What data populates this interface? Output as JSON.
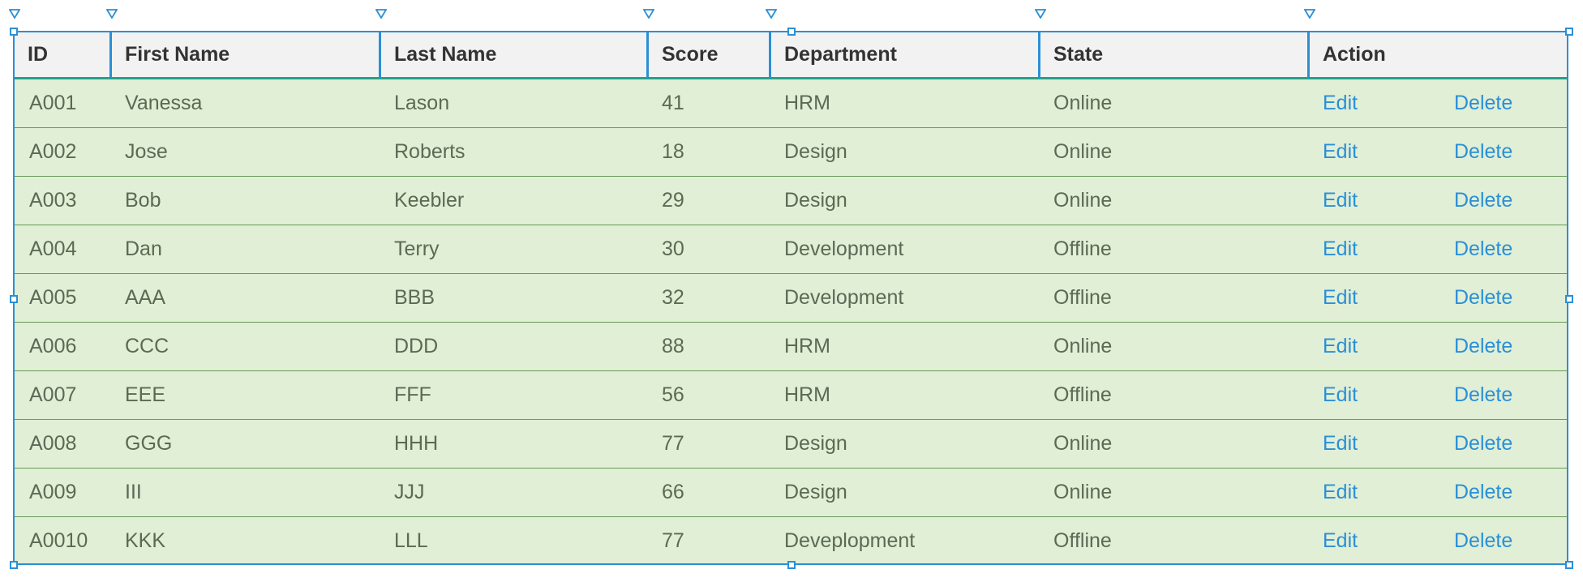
{
  "table": {
    "columns": [
      "ID",
      "First Name",
      "Last Name",
      "Score",
      "Department",
      "State",
      "Action"
    ],
    "rows": [
      {
        "id": "A001",
        "first": "Vanessa",
        "last": "Lason",
        "score": "41",
        "dept": "HRM",
        "state": "Online",
        "edit": "Edit",
        "delete": "Delete"
      },
      {
        "id": "A002",
        "first": "Jose",
        "last": "Roberts",
        "score": "18",
        "dept": "Design",
        "state": "Online",
        "edit": "Edit",
        "delete": "Delete"
      },
      {
        "id": "A003",
        "first": "Bob",
        "last": "Keebler",
        "score": "29",
        "dept": "Design",
        "state": "Online",
        "edit": "Edit",
        "delete": "Delete"
      },
      {
        "id": "A004",
        "first": "Dan",
        "last": "Terry",
        "score": "30",
        "dept": "Development",
        "state": "Offline",
        "edit": "Edit",
        "delete": "Delete"
      },
      {
        "id": "A005",
        "first": "AAA",
        "last": "BBB",
        "score": "32",
        "dept": "Development",
        "state": "Offline",
        "edit": "Edit",
        "delete": "Delete"
      },
      {
        "id": "A006",
        "first": "CCC",
        "last": "DDD",
        "score": "88",
        "dept": "HRM",
        "state": "Online",
        "edit": "Edit",
        "delete": "Delete"
      },
      {
        "id": "A007",
        "first": "EEE",
        "last": "FFF",
        "score": "56",
        "dept": "HRM",
        "state": "Offline",
        "edit": "Edit",
        "delete": "Delete"
      },
      {
        "id": "A008",
        "first": "GGG",
        "last": "HHH",
        "score": "77",
        "dept": "Design",
        "state": "Online",
        "edit": "Edit",
        "delete": "Delete"
      },
      {
        "id": "A009",
        "first": "III",
        "last": "JJJ",
        "score": "66",
        "dept": "Design",
        "state": "Online",
        "edit": "Edit",
        "delete": "Delete"
      },
      {
        "id": "A0010",
        "first": "KKK",
        "last": "LLL",
        "score": "77",
        "dept": "Deveplopment",
        "state": "Offline",
        "edit": "Edit",
        "delete": "Delete"
      }
    ]
  },
  "colors": {
    "accent": "#2b8fd6",
    "header_bg": "#f2f2f2",
    "row_bg": "#e0efd6",
    "header_rule": "#26a08a",
    "row_divider": "#6a9a5c"
  },
  "icons": {
    "column_marker": "column-resize-marker-icon",
    "selection_handle": "selection-handle-icon"
  }
}
